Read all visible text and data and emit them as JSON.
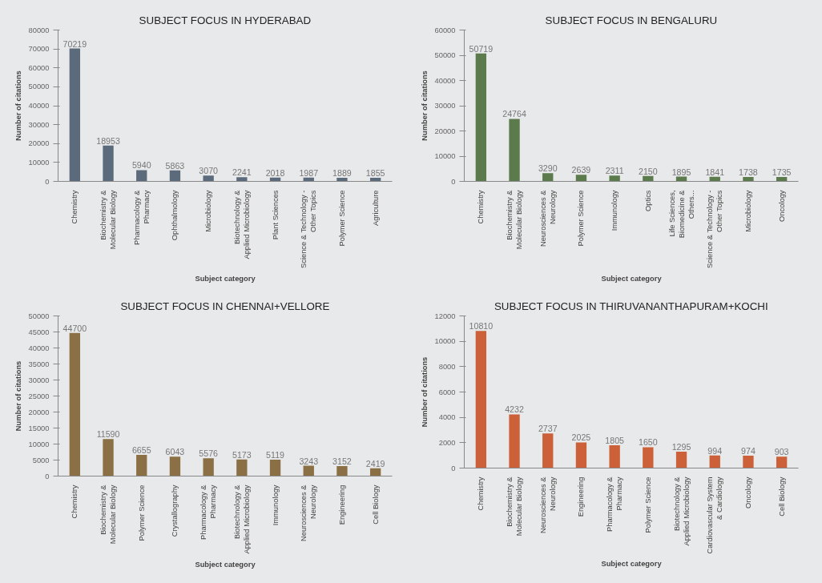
{
  "chart_data": [
    {
      "type": "bar",
      "title": "SUBJECT FOCUS IN HYDERABAD",
      "xlabel": "Subject category",
      "ylabel": "Number of citations",
      "color": "#5b6b7c",
      "data_labels": true,
      "ylim": [
        0,
        80000
      ],
      "yticks": [
        0,
        10000,
        20000,
        30000,
        40000,
        50000,
        60000,
        70000,
        80000
      ],
      "categories": [
        "Chemistry",
        "Biochemistry & Molecular Biology",
        "Pharmacology & Pharmacy",
        "Ophthalmology",
        "Microbiology",
        "Biotechnology & Applied Microbiology",
        "Plant Sciences",
        "Science & Technology - Other Topics",
        "Polymer Science",
        "Agriculture"
      ],
      "values": [
        70219,
        18953,
        5940,
        5863,
        3070,
        2241,
        2018,
        1987,
        1889,
        1855
      ]
    },
    {
      "type": "bar",
      "title": "SUBJECT FOCUS IN BENGALURU",
      "xlabel": "Subject category",
      "ylabel": "Number of citations",
      "color": "#5b7b4c",
      "data_labels": true,
      "ylim": [
        0,
        60000
      ],
      "yticks": [
        0,
        10000,
        20000,
        30000,
        40000,
        50000,
        60000
      ],
      "categories": [
        "Chemistry",
        "Biochemistry & Molecular Biology",
        "Neurosciences & Neurology",
        "Polymer Science",
        "Immunology",
        "Optics",
        "Life Sciences, Biomedicine & Others...",
        "Science & Technology - Other Topics",
        "Microbiology",
        "Oncology"
      ],
      "values": [
        50719,
        24764,
        3290,
        2639,
        2311,
        2150,
        1895,
        1841,
        1738,
        1735
      ]
    },
    {
      "type": "bar",
      "title": "SUBJECT FOCUS IN CHENNAI+VELLORE",
      "xlabel": "Subject category",
      "ylabel": "Number of citations",
      "color": "#8b7045",
      "data_labels": true,
      "ylim": [
        0,
        50000
      ],
      "yticks": [
        0,
        5000,
        10000,
        15000,
        20000,
        25000,
        30000,
        35000,
        40000,
        45000,
        50000
      ],
      "categories": [
        "Chemistry",
        "Biochemistry & Molecular Biology",
        "Polymer Science",
        "Crystallography",
        "Pharmacology & Pharmacy",
        "Biotechnology & Applied Microbiology",
        "Immunology",
        "Neurosciences & Neurology",
        "Engineering",
        "Cell Biology"
      ],
      "values": [
        44700,
        11590,
        6655,
        6043,
        5576,
        5173,
        5119,
        3243,
        3152,
        2419
      ]
    },
    {
      "type": "bar",
      "title": "SUBJECT FOCUS IN THIRUVANANTHAPURAM+KOCHI",
      "xlabel": "Subject category",
      "ylabel": "Number of citations",
      "color": "#cc6038",
      "data_labels": true,
      "ylim": [
        0,
        12000
      ],
      "yticks": [
        0,
        2000,
        4000,
        6000,
        8000,
        10000,
        12000
      ],
      "categories": [
        "Chemistry",
        "Biochemistry & Molecular Biology",
        "Neurosciences & Neurology",
        "Engineering",
        "Pharmacology & Pharmacy",
        "Polymer Science",
        "Biotechnology & Applied Microbiology",
        "Cardiovascular System & Cardiology",
        "Oncology",
        "Cell Biology"
      ],
      "values": [
        10810,
        4232,
        2737,
        2025,
        1805,
        1650,
        1295,
        994,
        974,
        903
      ]
    }
  ]
}
